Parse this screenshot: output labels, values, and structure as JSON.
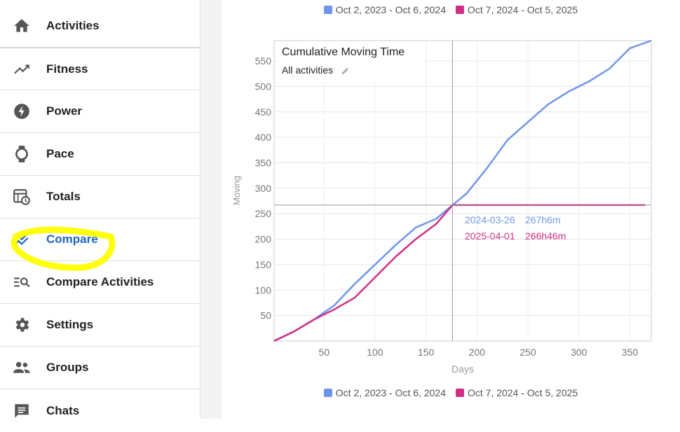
{
  "sidebar": {
    "items": [
      {
        "label": "Activities",
        "icon": "home-icon"
      },
      {
        "label": "Fitness",
        "icon": "trending-up-icon"
      },
      {
        "label": "Power",
        "icon": "lightning-icon"
      },
      {
        "label": "Pace",
        "icon": "watch-icon"
      },
      {
        "label": "Totals",
        "icon": "calendar-clock-icon"
      },
      {
        "label": "Compare",
        "icon": "compare-lines-icon",
        "active": true
      },
      {
        "label": "Compare Activities",
        "icon": "list-search-icon"
      },
      {
        "label": "Settings",
        "icon": "gear-icon"
      },
      {
        "label": "Groups",
        "icon": "people-icon"
      },
      {
        "label": "Chats",
        "icon": "chat-icon"
      }
    ]
  },
  "colors": {
    "series1": "#6f95ea",
    "series2": "#d12f86",
    "active": "#1e63c8",
    "highlight": "#ffff00"
  },
  "chart_data": {
    "type": "line",
    "title": "Cumulative Moving Time",
    "subtitle": "All activities",
    "xlabel": "Days",
    "ylabel": "Moving",
    "xlim": [
      1,
      371
    ],
    "ylim": [
      0,
      590
    ],
    "x_ticks": [
      50,
      100,
      150,
      200,
      250,
      300,
      350
    ],
    "y_ticks": [
      50,
      100,
      150,
      200,
      250,
      300,
      350,
      400,
      450,
      500,
      550
    ],
    "legend_position": "top and bottom",
    "series": [
      {
        "name": "Oct 2, 2023 - Oct 6, 2024",
        "x": [
          1,
          20,
          40,
          60,
          80,
          100,
          120,
          140,
          160,
          176,
          190,
          210,
          230,
          250,
          270,
          290,
          310,
          330,
          350,
          371
        ],
        "values": [
          0,
          18,
          42,
          70,
          112,
          150,
          188,
          223,
          240,
          267,
          290,
          340,
          395,
          430,
          465,
          490,
          510,
          535,
          575,
          590
        ]
      },
      {
        "name": "Oct 7, 2024 - Oct 5, 2025",
        "x": [
          1,
          20,
          40,
          60,
          80,
          100,
          120,
          140,
          160,
          176,
          200,
          250,
          300,
          350,
          365
        ],
        "values": [
          0,
          18,
          42,
          62,
          85,
          125,
          165,
          200,
          230,
          267,
          267,
          267,
          267,
          267,
          267
        ]
      }
    ],
    "crosshair": {
      "x": 176,
      "y": 267,
      "rows": [
        {
          "date": "2024-03-26",
          "value": "267h6m"
        },
        {
          "date": "2025-04-01",
          "value": "266h46m"
        }
      ]
    }
  }
}
